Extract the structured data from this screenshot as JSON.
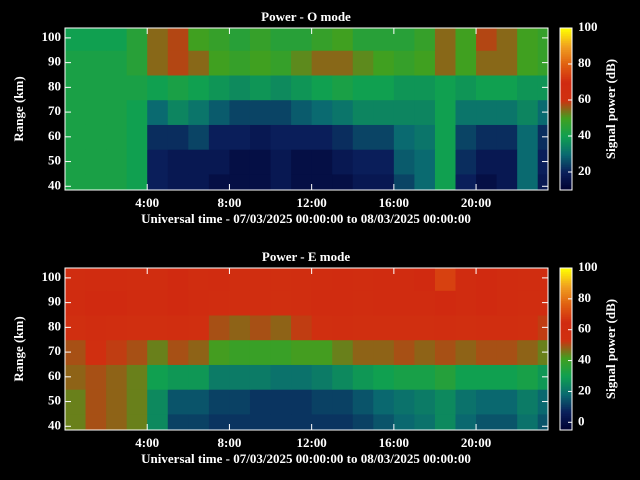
{
  "chart_data": [
    {
      "type": "heatmap",
      "title": "Power - O mode",
      "xlabel": "Universal time - 07/03/2025 00:00:00 to 08/03/2025 00:00:00",
      "ylabel": "Range (km)",
      "zlabel": "Signal power (dB)",
      "x": [
        0,
        1,
        2,
        3,
        4,
        5,
        6,
        7,
        8,
        9,
        10,
        11,
        12,
        13,
        14,
        15,
        16,
        17,
        18,
        19,
        20,
        21,
        22,
        23
      ],
      "y": [
        40,
        50,
        60,
        70,
        80,
        90,
        100
      ],
      "values": [
        [
          42,
          42,
          42,
          40,
          20,
          18,
          18,
          15,
          15,
          15,
          18,
          15,
          15,
          15,
          18,
          18,
          25,
          30,
          40,
          20,
          15,
          18,
          30,
          18
        ],
        [
          42,
          42,
          42,
          40,
          20,
          18,
          18,
          18,
          15,
          15,
          18,
          15,
          15,
          18,
          20,
          20,
          28,
          30,
          40,
          22,
          18,
          18,
          30,
          20
        ],
        [
          42,
          42,
          42,
          40,
          22,
          22,
          25,
          20,
          20,
          18,
          20,
          20,
          20,
          22,
          25,
          25,
          30,
          32,
          40,
          25,
          22,
          22,
          30,
          22
        ],
        [
          42,
          42,
          42,
          40,
          30,
          35,
          32,
          28,
          25,
          25,
          25,
          28,
          30,
          32,
          35,
          35,
          35,
          35,
          40,
          32,
          32,
          32,
          35,
          30
        ],
        [
          42,
          42,
          42,
          42,
          40,
          42,
          40,
          38,
          36,
          38,
          36,
          38,
          40,
          42,
          40,
          40,
          38,
          38,
          40,
          38,
          40,
          40,
          38,
          38
        ],
        [
          42,
          42,
          42,
          45,
          55,
          58,
          55,
          50,
          48,
          50,
          48,
          52,
          55,
          55,
          52,
          50,
          48,
          50,
          55,
          50,
          55,
          55,
          50,
          48
        ],
        [
          40,
          40,
          40,
          45,
          55,
          58,
          50,
          48,
          45,
          48,
          45,
          45,
          48,
          50,
          45,
          45,
          45,
          48,
          55,
          50,
          58,
          55,
          50,
          48
        ]
      ],
      "xlim": [
        0,
        23.5
      ],
      "xticks": [
        {
          "value": 4,
          "label": "4:00"
        },
        {
          "value": 8,
          "label": "8:00"
        },
        {
          "value": 12,
          "label": "12:00"
        },
        {
          "value": 16,
          "label": "16:00"
        },
        {
          "value": 20,
          "label": "20:00"
        }
      ],
      "ylim": [
        38.5,
        104
      ],
      "yticks": [
        40,
        50,
        60,
        70,
        80,
        90,
        100
      ],
      "zlim": [
        10,
        100
      ],
      "zticks": [
        20,
        40,
        60,
        80,
        100
      ],
      "colormap": [
        "#000030",
        "#0a1e5a",
        "#0a6a70",
        "#10a050",
        "#40a020",
        "#d03010",
        "#d02a10",
        "#e06010",
        "#f0a020",
        "#ffff00"
      ]
    },
    {
      "type": "heatmap",
      "title": "Power - E mode",
      "xlabel": "Universal time - 07/03/2025 00:00:00 to 08/03/2025 00:00:00",
      "ylabel": "Range (km)",
      "zlabel": "Signal power (dB)",
      "x": [
        0,
        1,
        2,
        3,
        4,
        5,
        6,
        7,
        8,
        9,
        10,
        11,
        12,
        13,
        14,
        15,
        16,
        17,
        18,
        19,
        20,
        21,
        22,
        23
      ],
      "y": [
        40,
        50,
        60,
        70,
        80,
        90,
        100
      ],
      "values": [
        [
          45,
          50,
          48,
          45,
          25,
          12,
          12,
          10,
          10,
          10,
          10,
          10,
          10,
          10,
          12,
          15,
          18,
          20,
          25,
          18,
          15,
          15,
          20,
          15
        ],
        [
          45,
          50,
          48,
          45,
          25,
          15,
          15,
          12,
          12,
          10,
          10,
          10,
          12,
          12,
          15,
          18,
          20,
          22,
          25,
          20,
          18,
          18,
          22,
          18
        ],
        [
          48,
          50,
          48,
          45,
          30,
          28,
          28,
          22,
          22,
          22,
          20,
          20,
          22,
          25,
          28,
          30,
          32,
          32,
          35,
          30,
          30,
          30,
          32,
          28
        ],
        [
          50,
          55,
          52,
          50,
          45,
          50,
          48,
          42,
          40,
          40,
          40,
          42,
          42,
          45,
          48,
          48,
          50,
          48,
          50,
          48,
          50,
          50,
          48,
          45
        ],
        [
          55,
          60,
          58,
          55,
          55,
          58,
          55,
          50,
          48,
          50,
          48,
          52,
          55,
          58,
          55,
          55,
          55,
          55,
          58,
          55,
          58,
          58,
          55,
          52
        ],
        [
          62,
          65,
          65,
          62,
          62,
          65,
          62,
          60,
          58,
          58,
          55,
          58,
          62,
          62,
          60,
          62,
          62,
          62,
          65,
          62,
          65,
          62,
          60,
          60
        ],
        [
          60,
          62,
          62,
          60,
          60,
          65,
          60,
          62,
          58,
          58,
          55,
          58,
          60,
          62,
          60,
          62,
          62,
          65,
          70,
          62,
          65,
          62,
          60,
          60
        ]
      ],
      "xlim": [
        0,
        23.5
      ],
      "xticks": [
        {
          "value": 4,
          "label": "4:00"
        },
        {
          "value": 8,
          "label": "8:00"
        },
        {
          "value": 12,
          "label": "12:00"
        },
        {
          "value": 16,
          "label": "16:00"
        },
        {
          "value": 20,
          "label": "20:00"
        }
      ],
      "ylim": [
        38.5,
        104
      ],
      "yticks": [
        40,
        50,
        60,
        70,
        80,
        90,
        100
      ],
      "zlim": [
        -5,
        100
      ],
      "zticks": [
        0,
        20,
        40,
        60,
        80,
        100
      ],
      "colormap": [
        "#000030",
        "#0a1e5a",
        "#0a6a70",
        "#10a050",
        "#40a020",
        "#d03010",
        "#d02a10",
        "#e06010",
        "#f0a020",
        "#ffff00"
      ]
    }
  ]
}
